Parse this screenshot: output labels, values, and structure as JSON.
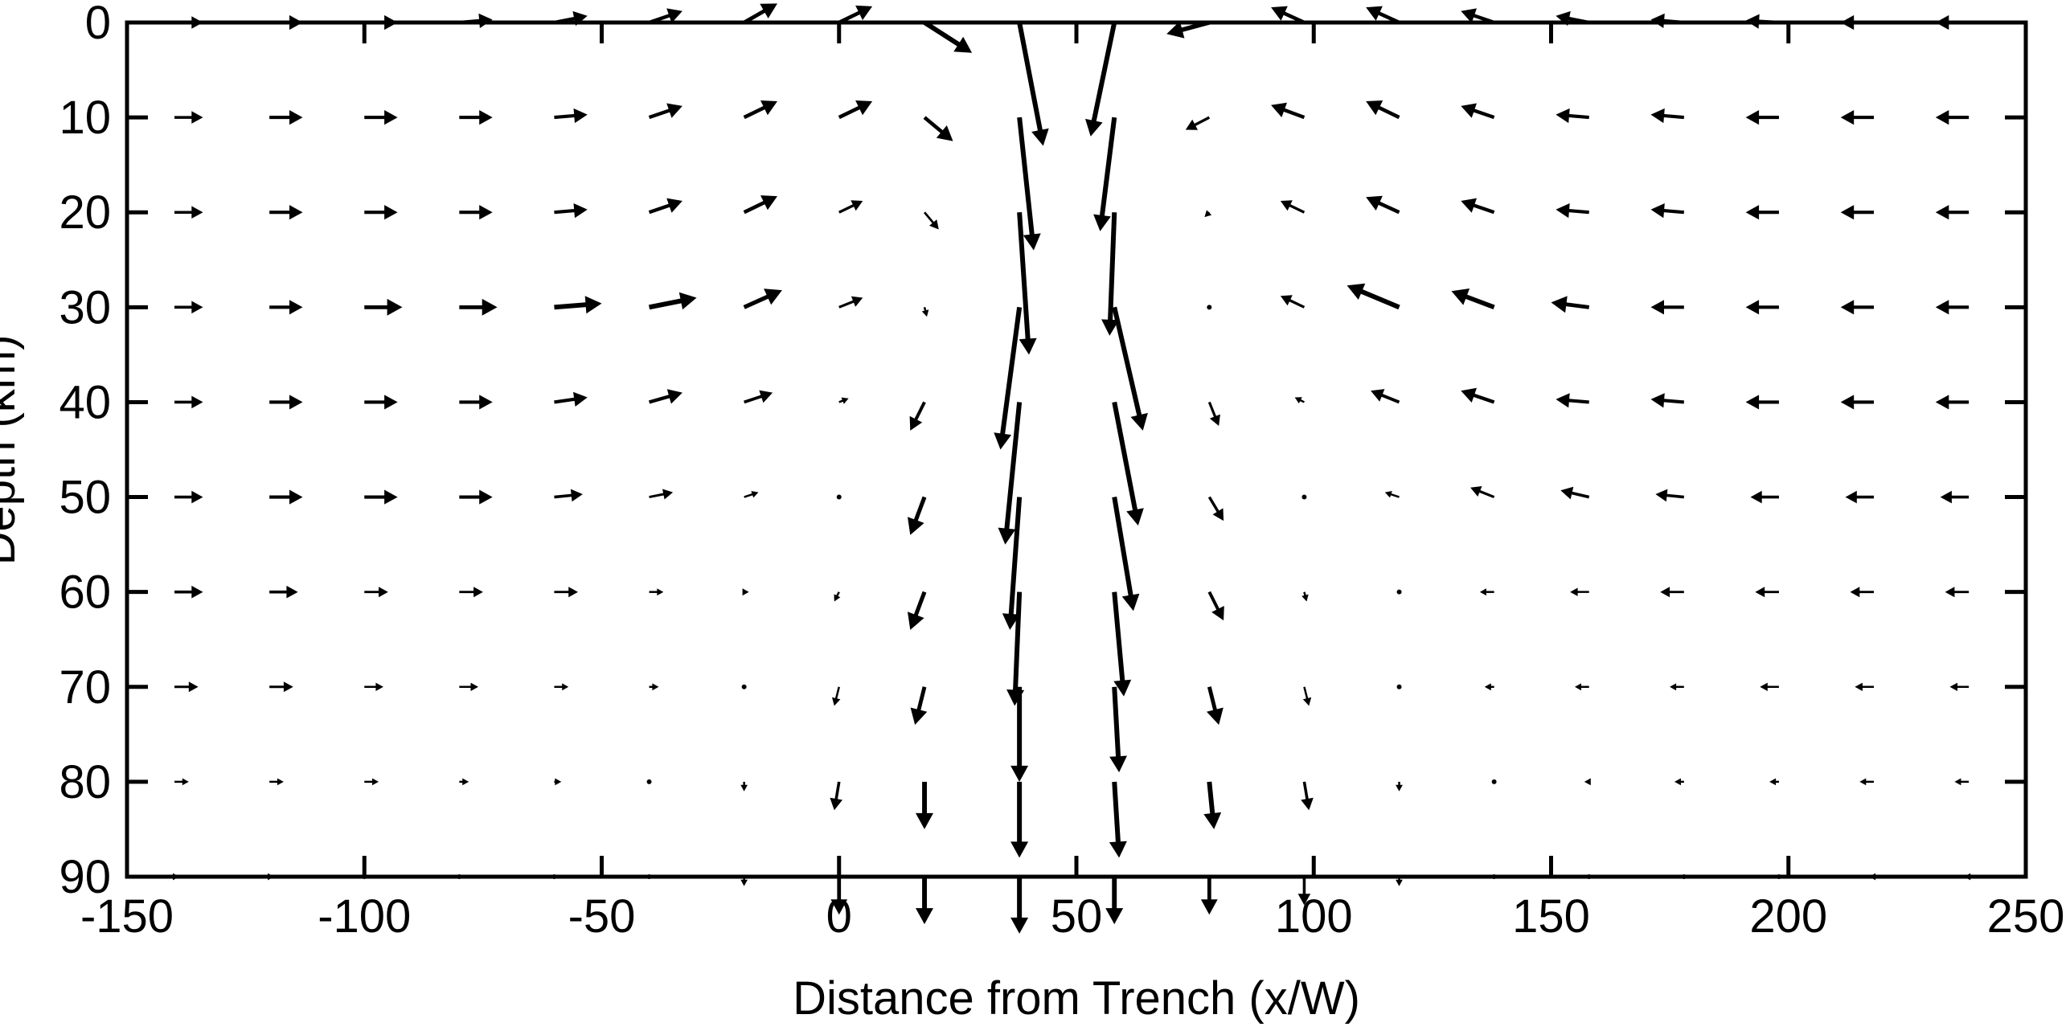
{
  "chart_data": {
    "type": "quiver",
    "xlabel": "Distance from Trench (x/W)",
    "ylabel": "Depth (km)",
    "xlim": [
      -150,
      250
    ],
    "ylim": [
      90,
      0
    ],
    "y_inverted": true,
    "xticks": [
      -150,
      -100,
      -50,
      0,
      50,
      100,
      150,
      200,
      250
    ],
    "yticks": [
      0,
      10,
      20,
      30,
      40,
      50,
      60,
      70,
      80,
      90
    ],
    "grid": false,
    "legend": "none",
    "arrow_color": "#000000",
    "vector_units": "arrow components in data units (dx along distance, dz along depth, positive dz = downward)",
    "x": [
      -140,
      -120,
      -100,
      -80,
      -60,
      -40,
      -20,
      0,
      18,
      38,
      58,
      78,
      98,
      118,
      138,
      158,
      178,
      198,
      218,
      238
    ],
    "depth": [
      0,
      10,
      20,
      30,
      40,
      50,
      60,
      70,
      80,
      90
    ],
    "vectors": [
      [
        [
          6,
          0
        ],
        [
          7,
          0
        ],
        [
          7,
          0
        ],
        [
          7,
          -0.3
        ],
        [
          7,
          -0.7
        ],
        [
          7,
          -1.2
        ],
        [
          7,
          -2
        ],
        [
          7,
          -1.7
        ],
        [
          10,
          3.2
        ],
        [
          5,
          13
        ],
        [
          -5,
          12
        ],
        [
          -9,
          1.2
        ],
        [
          -7,
          -1.6
        ],
        [
          -7,
          -1.6
        ],
        [
          -7,
          -1.2
        ],
        [
          -7,
          -0.7
        ],
        [
          -7,
          -0.3
        ],
        [
          -7,
          -0.2
        ],
        [
          -7,
          0
        ],
        [
          -7,
          0
        ]
      ],
      [
        [
          6,
          0
        ],
        [
          7,
          0
        ],
        [
          7,
          0
        ],
        [
          7,
          0
        ],
        [
          7,
          -0.3
        ],
        [
          7,
          -1.2
        ],
        [
          7,
          -1.7
        ],
        [
          7,
          -1.7
        ],
        [
          6,
          2.5
        ],
        [
          3,
          14
        ],
        [
          -3,
          12
        ],
        [
          -5,
          1.3
        ],
        [
          -7,
          -1.3
        ],
        [
          -7,
          -1.7
        ],
        [
          -7,
          -1.2
        ],
        [
          -7,
          -0.3
        ],
        [
          -7,
          -0.3
        ],
        [
          -7,
          0
        ],
        [
          -7,
          0
        ],
        [
          -7,
          0
        ]
      ],
      [
        [
          6,
          0
        ],
        [
          7,
          0
        ],
        [
          7,
          0
        ],
        [
          7,
          0
        ],
        [
          7,
          -0.3
        ],
        [
          7,
          -1.2
        ],
        [
          7,
          -1.7
        ],
        [
          5,
          -1.2
        ],
        [
          3,
          1.8
        ],
        [
          2,
          15
        ],
        [
          -1,
          13
        ],
        [
          -1,
          0.5
        ],
        [
          -5,
          -1.2
        ],
        [
          -7,
          -1.6
        ],
        [
          -7,
          -1.2
        ],
        [
          -7,
          -0.3
        ],
        [
          -7,
          -0.3
        ],
        [
          -7,
          0
        ],
        [
          -7,
          0
        ],
        [
          -7,
          0
        ]
      ],
      [
        [
          6,
          0
        ],
        [
          7,
          0
        ],
        [
          8,
          0
        ],
        [
          8,
          0
        ],
        [
          10,
          -0.4
        ],
        [
          10,
          -1
        ],
        [
          8,
          -1.8
        ],
        [
          5,
          -1
        ],
        [
          0.5,
          1
        ],
        [
          -4,
          15
        ],
        [
          6,
          13
        ],
        [
          0.2,
          0.1
        ],
        [
          -5,
          -1.2
        ],
        [
          -11,
          -2.3
        ],
        [
          -9,
          -1.7
        ],
        [
          -8,
          -0.5
        ],
        [
          -7,
          0
        ],
        [
          -7,
          0
        ],
        [
          -7,
          0
        ],
        [
          -7,
          0
        ]
      ],
      [
        [
          6,
          0
        ],
        [
          7,
          0
        ],
        [
          7,
          0
        ],
        [
          7,
          0
        ],
        [
          7,
          -0.5
        ],
        [
          7,
          -1
        ],
        [
          6,
          -1
        ],
        [
          2,
          -0.4
        ],
        [
          -3,
          3
        ],
        [
          -3,
          15
        ],
        [
          5,
          13
        ],
        [
          2,
          2.5
        ],
        [
          -2,
          -0.5
        ],
        [
          -6,
          -1.2
        ],
        [
          -7,
          -1.2
        ],
        [
          -7,
          -0.3
        ],
        [
          -7,
          -0.3
        ],
        [
          -7,
          0
        ],
        [
          -7,
          0
        ],
        [
          -7,
          0
        ]
      ],
      [
        [
          6,
          0
        ],
        [
          7,
          0
        ],
        [
          7,
          0
        ],
        [
          7,
          0
        ],
        [
          6,
          -0.3
        ],
        [
          5,
          -0.5
        ],
        [
          3,
          -0.5
        ],
        [
          0.2,
          0
        ],
        [
          -3,
          4
        ],
        [
          -2,
          14
        ],
        [
          4,
          12
        ],
        [
          3,
          2.5
        ],
        [
          0.2,
          0
        ],
        [
          -3,
          -0.5
        ],
        [
          -5,
          -1
        ],
        [
          -6,
          -0.7
        ],
        [
          -6,
          -0.3
        ],
        [
          -6,
          0
        ],
        [
          -6,
          0
        ],
        [
          -6,
          0
        ]
      ],
      [
        [
          6,
          0
        ],
        [
          6,
          0
        ],
        [
          5,
          0
        ],
        [
          5,
          0
        ],
        [
          5,
          0
        ],
        [
          3,
          0
        ],
        [
          1,
          0
        ],
        [
          -1,
          1
        ],
        [
          -3,
          4
        ],
        [
          -1,
          12
        ],
        [
          2,
          11
        ],
        [
          3,
          3
        ],
        [
          0.5,
          1
        ],
        [
          -0.5,
          0
        ],
        [
          -3,
          0
        ],
        [
          -4,
          0
        ],
        [
          -5,
          0
        ],
        [
          -5,
          0
        ],
        [
          -5,
          0
        ],
        [
          -5,
          0
        ]
      ],
      [
        [
          5,
          0
        ],
        [
          5,
          0
        ],
        [
          4,
          0
        ],
        [
          4,
          0
        ],
        [
          3,
          0
        ],
        [
          2,
          0
        ],
        [
          0.5,
          0
        ],
        [
          -1,
          2
        ],
        [
          -2,
          4
        ],
        [
          0,
          10
        ],
        [
          1,
          9
        ],
        [
          2,
          4
        ],
        [
          1,
          2
        ],
        [
          0,
          0
        ],
        [
          -2,
          0
        ],
        [
          -3,
          0
        ],
        [
          -3,
          0
        ],
        [
          -4,
          0
        ],
        [
          -4,
          0
        ],
        [
          -4,
          0
        ]
      ],
      [
        [
          3,
          0
        ],
        [
          3,
          0
        ],
        [
          3,
          0
        ],
        [
          2,
          0
        ],
        [
          1.5,
          0
        ],
        [
          0.5,
          0
        ],
        [
          0,
          1
        ],
        [
          -1,
          3
        ],
        [
          0,
          5
        ],
        [
          0,
          8
        ],
        [
          1,
          8
        ],
        [
          1,
          5
        ],
        [
          1,
          3
        ],
        [
          0,
          1
        ],
        [
          -0.5,
          0
        ],
        [
          -1,
          0
        ],
        [
          -2,
          0
        ],
        [
          -2,
          0
        ],
        [
          -3,
          0
        ],
        [
          -3,
          0
        ]
      ],
      [
        [
          1,
          0
        ],
        [
          1,
          0
        ],
        [
          0.5,
          0
        ],
        [
          0,
          0
        ],
        [
          0,
          0
        ],
        [
          0,
          0
        ],
        [
          0,
          1
        ],
        [
          0,
          4
        ],
        [
          0,
          5
        ],
        [
          0,
          6
        ],
        [
          0,
          5
        ],
        [
          0,
          4
        ],
        [
          0,
          3
        ],
        [
          0,
          1
        ],
        [
          0,
          0
        ],
        [
          0,
          0
        ],
        [
          0,
          0
        ],
        [
          0,
          0
        ],
        [
          -1,
          0
        ],
        [
          -1,
          0
        ]
      ]
    ]
  }
}
